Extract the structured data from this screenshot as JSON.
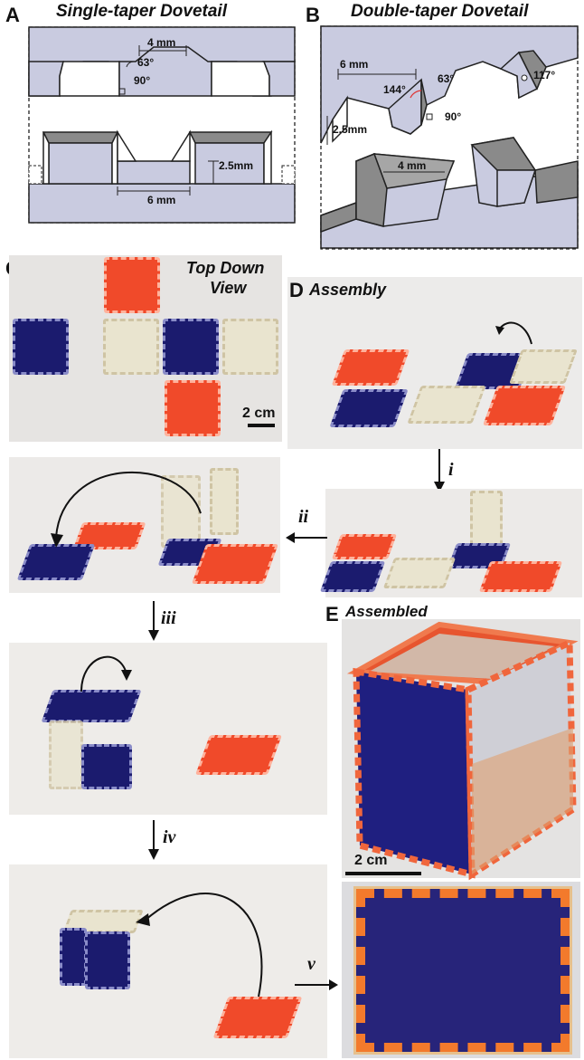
{
  "panel_a": {
    "letter": "A",
    "title": "Single-taper Dovetail",
    "dim_top_width": "4 mm",
    "angle_taper": "63°",
    "angle_base": "90°",
    "dim_height": "2.5mm",
    "dim_bottom_width": "6 mm"
  },
  "panel_b": {
    "letter": "B",
    "title": "Double-taper Dovetail",
    "dim_width": "6 mm",
    "angle_inner": "144°",
    "angle_taper": "63°",
    "angle_outer": "117°",
    "angle_base": "90°",
    "dim_height": "2.5mm",
    "dim_top_width": "4 mm"
  },
  "panel_c": {
    "letter": "C",
    "title_line1": "Top Down",
    "title_line2": "View",
    "scale_bar": "2 cm"
  },
  "panel_d": {
    "letter": "D",
    "title": "Assembly",
    "steps": [
      "i",
      "ii",
      "iii",
      "iv",
      "v"
    ]
  },
  "panel_e": {
    "letter": "E",
    "title": "Assembled",
    "scale_bar": "2 cm"
  },
  "colors": {
    "tile_red": "#f04a2a",
    "tile_blue": "#1b1b6e",
    "tile_cream": "#e9e4cf",
    "diagram_fill": "#c9cbe0",
    "diagram_shade": "#8a8a8a"
  }
}
